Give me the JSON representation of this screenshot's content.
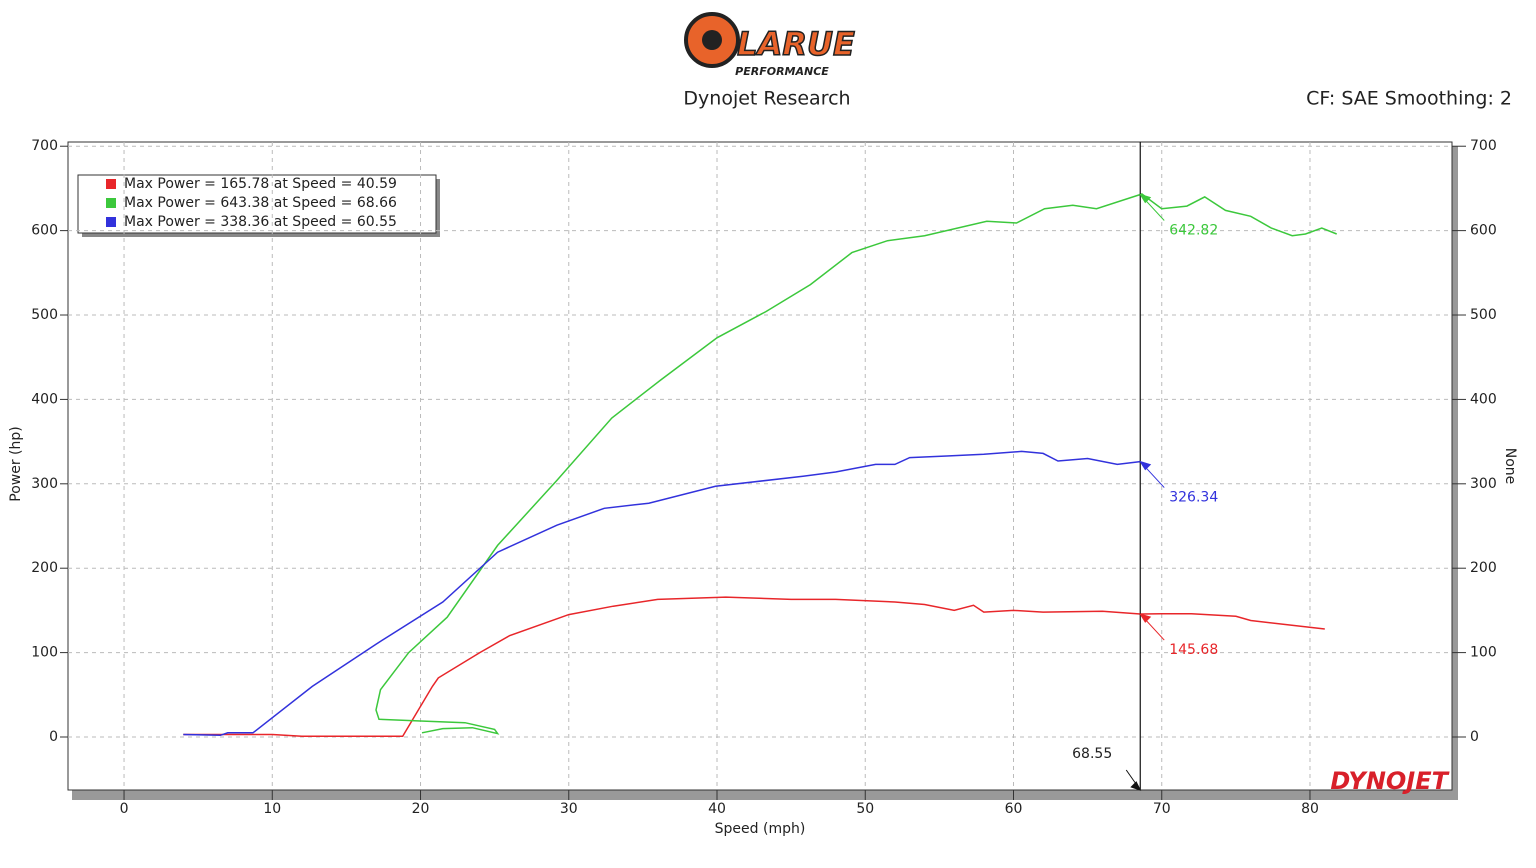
{
  "chart_data": {
    "type": "line",
    "logo": {
      "name": "LARUE",
      "tagline": "PERFORMANCE"
    },
    "title": "Dynojet Research",
    "subtitle": "CF: SAE Smoothing: 2",
    "x_label": "Speed (mph)",
    "y_label": "Power (hp)",
    "y2_label": "None",
    "watermark": "DYNOJET",
    "xlim": [
      -3.78,
      89.58
    ],
    "ylim": [
      -62.8,
      705
    ],
    "y2lim": [
      -62.8,
      705
    ],
    "xticks": [
      0,
      10,
      20,
      30,
      40,
      50,
      60,
      70,
      80
    ],
    "yticks": [
      0,
      100,
      200,
      300,
      400,
      500,
      600,
      700
    ],
    "y2ticks": [
      0,
      100,
      200,
      300,
      400,
      500,
      600,
      700
    ],
    "grid": true,
    "legend": "upper left",
    "series": [
      {
        "name": "Max Power = 165.78 at Speed = 40.59",
        "color": "#e8262a",
        "x": [
          4,
          10,
          12,
          17.5,
          18.8,
          20.8,
          21.2,
          24,
          26,
          30,
          33,
          36,
          40.59,
          45,
          48,
          52,
          54,
          56,
          57.3,
          58,
          60,
          62,
          66,
          68.55,
          70,
          72,
          75,
          76,
          79,
          81
        ],
        "values": [
          3,
          3,
          1,
          1,
          1,
          60,
          70,
          100,
          120,
          145,
          155,
          163,
          165.78,
          163,
          163,
          160,
          157,
          150,
          156,
          148,
          150,
          148,
          149,
          145.68,
          146,
          146,
          143,
          138,
          132,
          128
        ]
      },
      {
        "name": "Max Power = 643.38 at Speed = 68.66",
        "color": "#3cc83c",
        "x": [
          20.1,
          21.5,
          23.5,
          25.2,
          25,
          23,
          20,
          17.2,
          17,
          17.3,
          19.2,
          21.8,
          25.2,
          29.2,
          32.9,
          36.2,
          40,
          43.3,
          46.3,
          49.1,
          51.5,
          54,
          58.2,
          60.2,
          62.1,
          64,
          65.6,
          68.66,
          70,
          71.7,
          72.9,
          74.3,
          76,
          77.4,
          78.8,
          79.7,
          80.8,
          81.8
        ],
        "values": [
          5,
          10,
          11,
          4,
          9,
          17,
          19,
          21,
          32,
          56,
          100,
          142,
          227,
          304,
          378,
          423,
          473,
          504,
          536,
          574,
          588,
          594,
          611,
          609,
          626,
          630,
          626,
          643.38,
          626,
          629,
          640,
          624,
          617,
          603,
          594,
          596,
          603,
          596
        ]
      },
      {
        "name": "Max Power = 338.36 at Speed = 60.55",
        "color": "#3232dc",
        "x": [
          4,
          6.5,
          7,
          8.7,
          12.7,
          17,
          21.5,
          25.2,
          29.2,
          32.4,
          35.4,
          39.9,
          45.8,
          48,
          50.7,
          52,
          53,
          55.5,
          58,
          60.55,
          62,
          63,
          65,
          67,
          68.55
        ],
        "values": [
          3,
          2,
          5,
          5,
          60,
          110,
          160,
          219,
          251,
          271,
          277,
          297,
          309,
          314,
          323,
          323,
          331,
          333,
          335,
          338.36,
          336,
          327,
          330,
          323,
          326.34
        ]
      }
    ],
    "cursor": {
      "x": 68.55,
      "values": [
        145.68,
        642.82,
        326.34
      ]
    }
  }
}
